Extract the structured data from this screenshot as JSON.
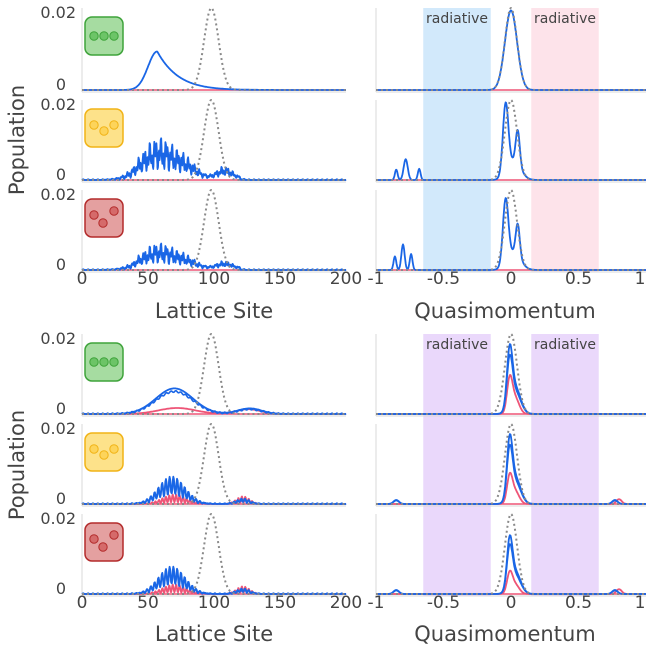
{
  "colors": {
    "blue": "#1a66e6",
    "red": "#ee5577",
    "dotted": "#8a8a8a",
    "band_blue": "#d2e9fb",
    "band_pink": "#fde3ea",
    "band_purple": "#ead8fb",
    "label_blue": "#4aaee8",
    "label_pink": "#ee7090",
    "label_purple": "#c07ae0",
    "icon_green_fill": "#a6dca1",
    "icon_green_edge": "#3ea33a",
    "icon_yellow_fill": "#fde28a",
    "icon_yellow_edge": "#f1b316",
    "icon_red_fill": "#e4a0a0",
    "icon_red_edge": "#b32b2b"
  },
  "labels": {
    "ylabel": "Population",
    "xlabel_left": "Lattice Site",
    "xlabel_right": "Quasimomentum",
    "band_label": "radiative"
  },
  "ticks": {
    "y_top": "0.02",
    "y_zero": "0",
    "left_x": [
      "0",
      "50",
      "100",
      "150",
      "200"
    ],
    "right_x": [
      "-1",
      "-0.5",
      "0",
      "0.5",
      "1"
    ]
  },
  "icons": [
    "green-three-dots-icon",
    "yellow-three-dots-icon",
    "red-three-dots-icon"
  ],
  "chart_data": [
    {
      "type": "line",
      "group": "top",
      "panel": "lattice-site",
      "xlabel": "Lattice Site",
      "ylabel": "Population",
      "xlim": [
        0,
        200
      ],
      "ylim": [
        0,
        0.02
      ],
      "rows": [
        {
          "icon": "green",
          "series": [
            {
              "color": "blue",
              "shape": "single peak",
              "peak_x": 57,
              "peak_y": 0.0095
            },
            {
              "color": "dotted",
              "peak_x": 98,
              "peak_y": 0.02
            }
          ]
        },
        {
          "icon": "yellow",
          "series": [
            {
              "color": "blue",
              "shape": "noisy broad peak",
              "peak_x": 58,
              "peak_y": 0.009
            },
            {
              "color": "dotted",
              "peak_x": 98,
              "peak_y": 0.02
            }
          ]
        },
        {
          "icon": "red",
          "series": [
            {
              "color": "blue",
              "shape": "noisy broad peak",
              "peak_x": 60,
              "peak_y": 0.005
            },
            {
              "color": "dotted",
              "peak_x": 98,
              "peak_y": 0.02
            }
          ]
        }
      ]
    },
    {
      "type": "line",
      "group": "top",
      "panel": "quasimomentum",
      "xlabel": "Quasimomentum",
      "xlim": [
        -1,
        1
      ],
      "bands": [
        {
          "range": [
            -0.65,
            -0.15
          ],
          "label": "radiative",
          "color": "band_blue"
        },
        {
          "range": [
            0.15,
            0.65
          ],
          "label": "radiative",
          "color": "band_pink"
        }
      ],
      "rows": [
        {
          "icon": "green",
          "series": [
            {
              "color": "blue",
              "peak_x": 0,
              "peak_y": 0.02
            },
            {
              "color": "dotted",
              "peak_x": 0,
              "peak_y": 0.02
            }
          ]
        },
        {
          "icon": "yellow",
          "series": [
            {
              "color": "blue",
              "peak_x": -0.05,
              "peak_y": 0.019,
              "side_peak_x": -0.78
            },
            {
              "color": "dotted",
              "peak_x": 0,
              "peak_y": 0.02
            }
          ]
        },
        {
          "icon": "red",
          "series": [
            {
              "color": "blue",
              "peak_x": -0.04,
              "peak_y": 0.018,
              "side_peak_x": -0.82
            },
            {
              "color": "dotted",
              "peak_x": 0,
              "peak_y": 0.02
            }
          ]
        }
      ]
    },
    {
      "type": "line",
      "group": "bottom",
      "panel": "lattice-site",
      "xlabel": "Lattice Site",
      "ylabel": "Population",
      "xlim": [
        0,
        200
      ],
      "ylim": [
        0,
        0.02
      ],
      "rows": [
        {
          "icon": "green",
          "series": [
            {
              "color": "blue",
              "peak_x": 70,
              "peak_y": 0.0065
            },
            {
              "color": "red",
              "peak_x": 70,
              "peak_y": 0.0015
            },
            {
              "color": "dotted",
              "peak_x": 98,
              "peak_y": 0.02
            }
          ]
        },
        {
          "icon": "yellow",
          "series": [
            {
              "color": "blue",
              "peak_x": 68,
              "peak_y": 0.006
            },
            {
              "color": "red",
              "peak_x": 70,
              "peak_y": 0.002
            },
            {
              "color": "dotted",
              "peak_x": 98,
              "peak_y": 0.02
            }
          ]
        },
        {
          "icon": "red",
          "series": [
            {
              "color": "blue",
              "peak_x": 68,
              "peak_y": 0.006
            },
            {
              "color": "red",
              "peak_x": 70,
              "peak_y": 0.0015
            },
            {
              "color": "dotted",
              "peak_x": 98,
              "peak_y": 0.02
            }
          ]
        }
      ]
    },
    {
      "type": "line",
      "group": "bottom",
      "panel": "quasimomentum",
      "xlabel": "Quasimomentum",
      "xlim": [
        -1,
        1
      ],
      "bands": [
        {
          "range": [
            -0.65,
            -0.15
          ],
          "label": "radiative",
          "color": "band_purple"
        },
        {
          "range": [
            0.15,
            0.65
          ],
          "label": "radiative",
          "color": "band_purple"
        }
      ],
      "rows": [
        {
          "icon": "green",
          "series": [
            {
              "color": "blue",
              "peak_x": 0,
              "peak_y": 0.019
            },
            {
              "color": "red",
              "peak_x": 0,
              "peak_y": 0.01
            },
            {
              "color": "dotted",
              "peak_x": 0,
              "peak_y": 0.02
            }
          ]
        },
        {
          "icon": "yellow",
          "series": [
            {
              "color": "blue",
              "peak_x": 0,
              "peak_y": 0.019
            },
            {
              "color": "red",
              "peak_x": 0,
              "peak_y": 0.008
            },
            {
              "color": "dotted",
              "peak_x": 0,
              "peak_y": 0.02
            }
          ]
        },
        {
          "icon": "red",
          "series": [
            {
              "color": "blue",
              "peak_x": 0,
              "peak_y": 0.016
            },
            {
              "color": "red",
              "peak_x": 0,
              "peak_y": 0.006
            },
            {
              "color": "dotted",
              "peak_x": 0,
              "peak_y": 0.02
            }
          ]
        }
      ]
    }
  ]
}
